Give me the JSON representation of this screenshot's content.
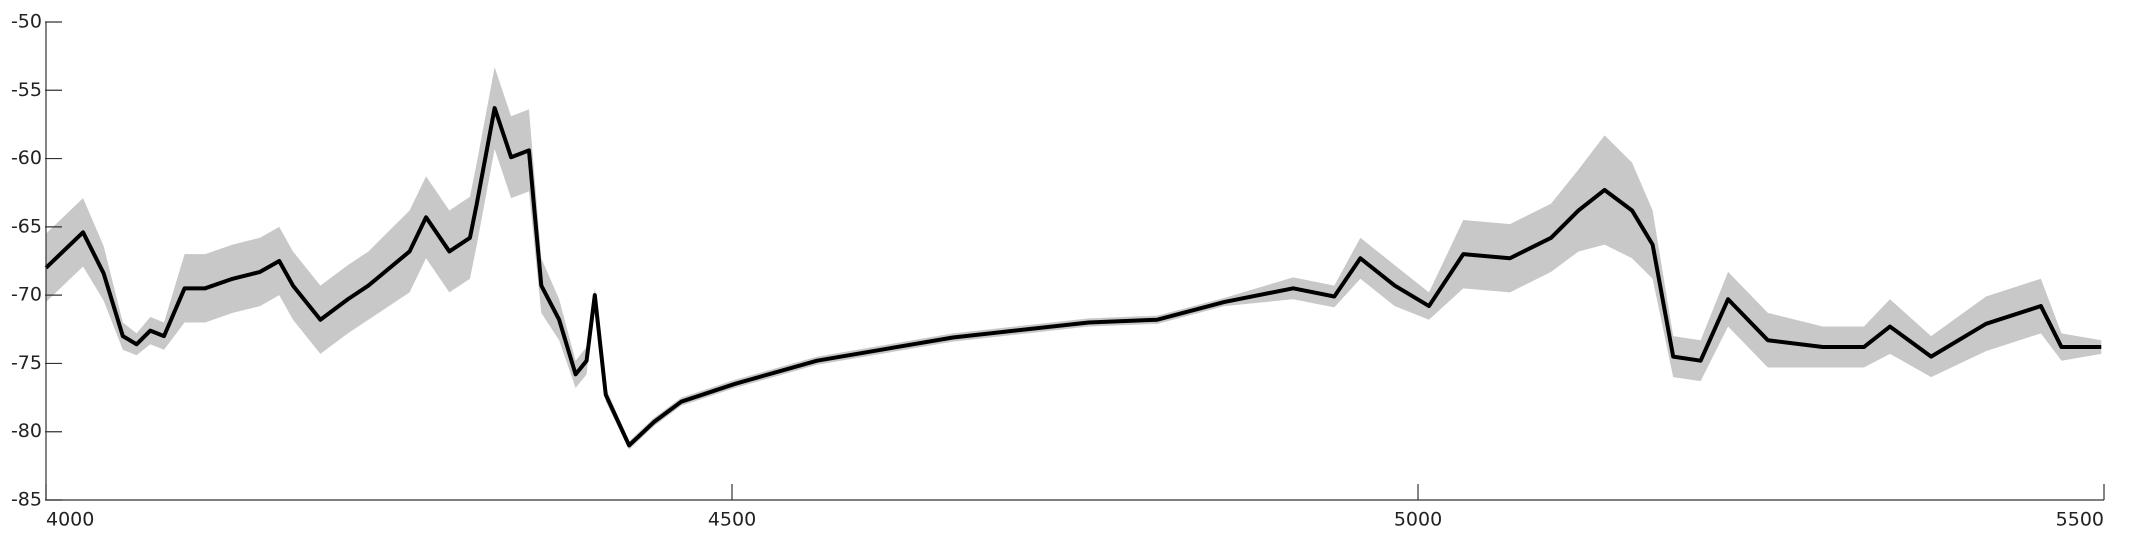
{
  "chart_data": {
    "type": "line",
    "x": [
      4000,
      4027,
      4042,
      4056,
      4066,
      4076,
      4086,
      4101,
      4116,
      4136,
      4156,
      4170,
      4180,
      4200,
      4220,
      4235,
      4265,
      4277,
      4294,
      4309,
      4314,
      4327,
      4339,
      4352,
      4361,
      4374,
      4386,
      4394,
      4400,
      4408,
      4425,
      4443,
      4463,
      4502,
      4562,
      4661,
      4760,
      4810,
      4859,
      4909,
      4939,
      4958,
      4983,
      5008,
      5033,
      5067,
      5097,
      5117,
      5136,
      5156,
      5171,
      5186,
      5206,
      5226,
      5255,
      5295,
      5325,
      5344,
      5374,
      5414,
      5454,
      5469,
      5498
    ],
    "series": [
      {
        "kind": "band",
        "color": "#c8c8c8",
        "upper": [
          -65.5,
          -62.9,
          -66.4,
          -72,
          -72.8,
          -71.6,
          -72,
          -67,
          -67,
          -66.3,
          -65.8,
          -65,
          -66.8,
          -69.3,
          -67.8,
          -66.8,
          -63.8,
          -61.3,
          -63.8,
          -62.8,
          -60.3,
          -53.3,
          -56.9,
          -56.4,
          -67.3,
          -70.3,
          -74.8,
          -73.8,
          -69.5,
          -76.8,
          -80.7,
          -79,
          -77.5,
          -76.2,
          -74.5,
          -72.8,
          -71.7,
          -71.5,
          -70.2,
          -68.7,
          -69.3,
          -65.8,
          -67.8,
          -69.8,
          -64.5,
          -64.8,
          -63.3,
          -60.8,
          -58.3,
          -60.3,
          -63.8,
          -73,
          -73.3,
          -68.3,
          -71.3,
          -72.3,
          -72.3,
          -70.3,
          -73,
          -70.1,
          -68.8,
          -72.8,
          -73.3
        ],
        "lower": [
          -70.5,
          -67.9,
          -70.4,
          -74,
          -74.4,
          -73.6,
          -74,
          -72,
          -72,
          -71.3,
          -70.8,
          -70,
          -71.8,
          -74.3,
          -72.8,
          -71.8,
          -69.8,
          -67.3,
          -69.8,
          -68.8,
          -66.3,
          -59.3,
          -62.9,
          -62.4,
          -71.3,
          -73.3,
          -76.8,
          -75.8,
          -70.5,
          -77.8,
          -81.3,
          -79.6,
          -78.1,
          -76.8,
          -75.1,
          -73.4,
          -72.3,
          -72.1,
          -70.8,
          -70.3,
          -70.9,
          -68.8,
          -70.8,
          -71.8,
          -69.5,
          -69.8,
          -68.3,
          -66.8,
          -66.3,
          -67.3,
          -68.8,
          -76,
          -76.3,
          -72.3,
          -75.3,
          -75.3,
          -75.3,
          -74.3,
          -76,
          -74.1,
          -72.8,
          -74.8,
          -74.3
        ]
      },
      {
        "kind": "line",
        "color": "#000000",
        "values": [
          -68,
          -65.4,
          -68.4,
          -73,
          -73.6,
          -72.6,
          -73,
          -69.5,
          -69.5,
          -68.8,
          -68.3,
          -67.5,
          -69.3,
          -71.8,
          -70.3,
          -69.3,
          -66.8,
          -64.3,
          -66.8,
          -65.8,
          -63.3,
          -56.3,
          -59.9,
          -59.4,
          -69.3,
          -71.8,
          -75.8,
          -74.8,
          -70,
          -77.3,
          -81,
          -79.3,
          -77.8,
          -76.5,
          -74.8,
          -73.1,
          -72,
          -71.8,
          -70.5,
          -69.5,
          -70.1,
          -67.3,
          -69.3,
          -70.8,
          -67,
          -67.3,
          -65.8,
          -63.8,
          -62.3,
          -63.8,
          -66.3,
          -74.5,
          -74.8,
          -70.3,
          -73.3,
          -73.8,
          -73.8,
          -72.3,
          -74.5,
          -72.1,
          -70.8,
          -73.8,
          -73.8
        ]
      }
    ],
    "xlim": [
      4000,
      5500
    ],
    "xticks": [
      4000,
      4500,
      5000,
      5500
    ],
    "ylim": [
      -85,
      -50
    ],
    "yticks": [
      -85,
      -80,
      -75,
      -70,
      -65,
      -60,
      -55,
      -50
    ]
  }
}
